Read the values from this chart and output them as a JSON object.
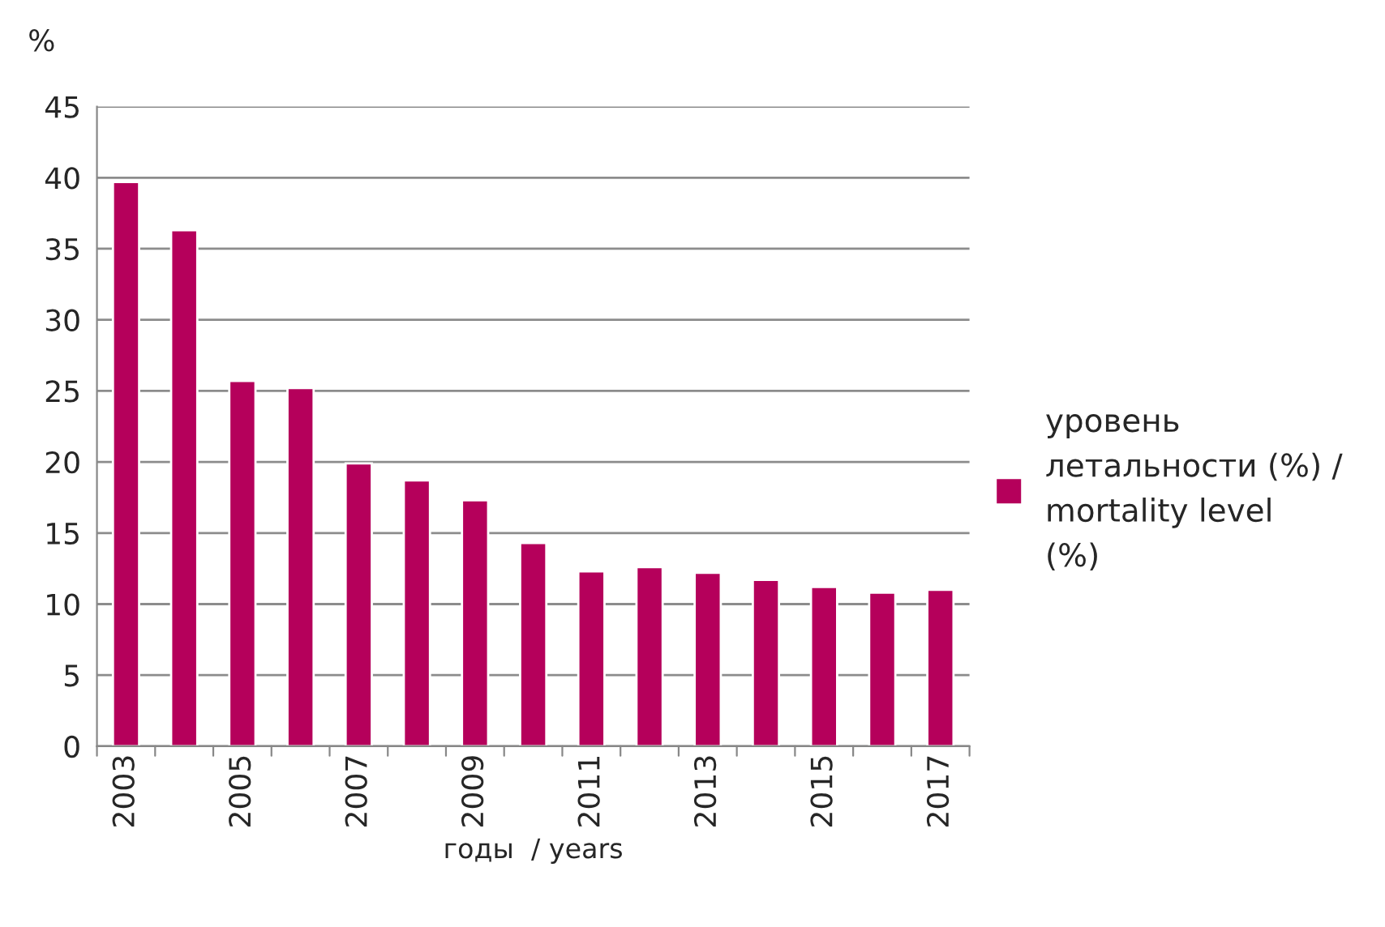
{
  "chart_data": {
    "type": "bar",
    "ylabel": "%",
    "xlabel": "годы  / years",
    "categories": [
      "2003",
      null,
      "2005",
      null,
      "2007",
      null,
      "2009",
      null,
      "2011",
      null,
      "2013",
      null,
      "2015",
      null,
      "2017"
    ],
    "series": [
      {
        "name": "уровень летальности (%) / mortality level (%)",
        "color": "#b5005b",
        "values": [
          39.7,
          36.3,
          25.7,
          25.2,
          19.9,
          18.7,
          17.3,
          14.3,
          12.3,
          12.6,
          12.2,
          11.7,
          11.2,
          10.8,
          11.0
        ]
      }
    ],
    "ylim": [
      0,
      45
    ],
    "yticks": [
      0,
      5,
      10,
      15,
      20,
      25,
      30,
      35,
      40,
      45
    ],
    "grid": "y",
    "legend": "right"
  }
}
